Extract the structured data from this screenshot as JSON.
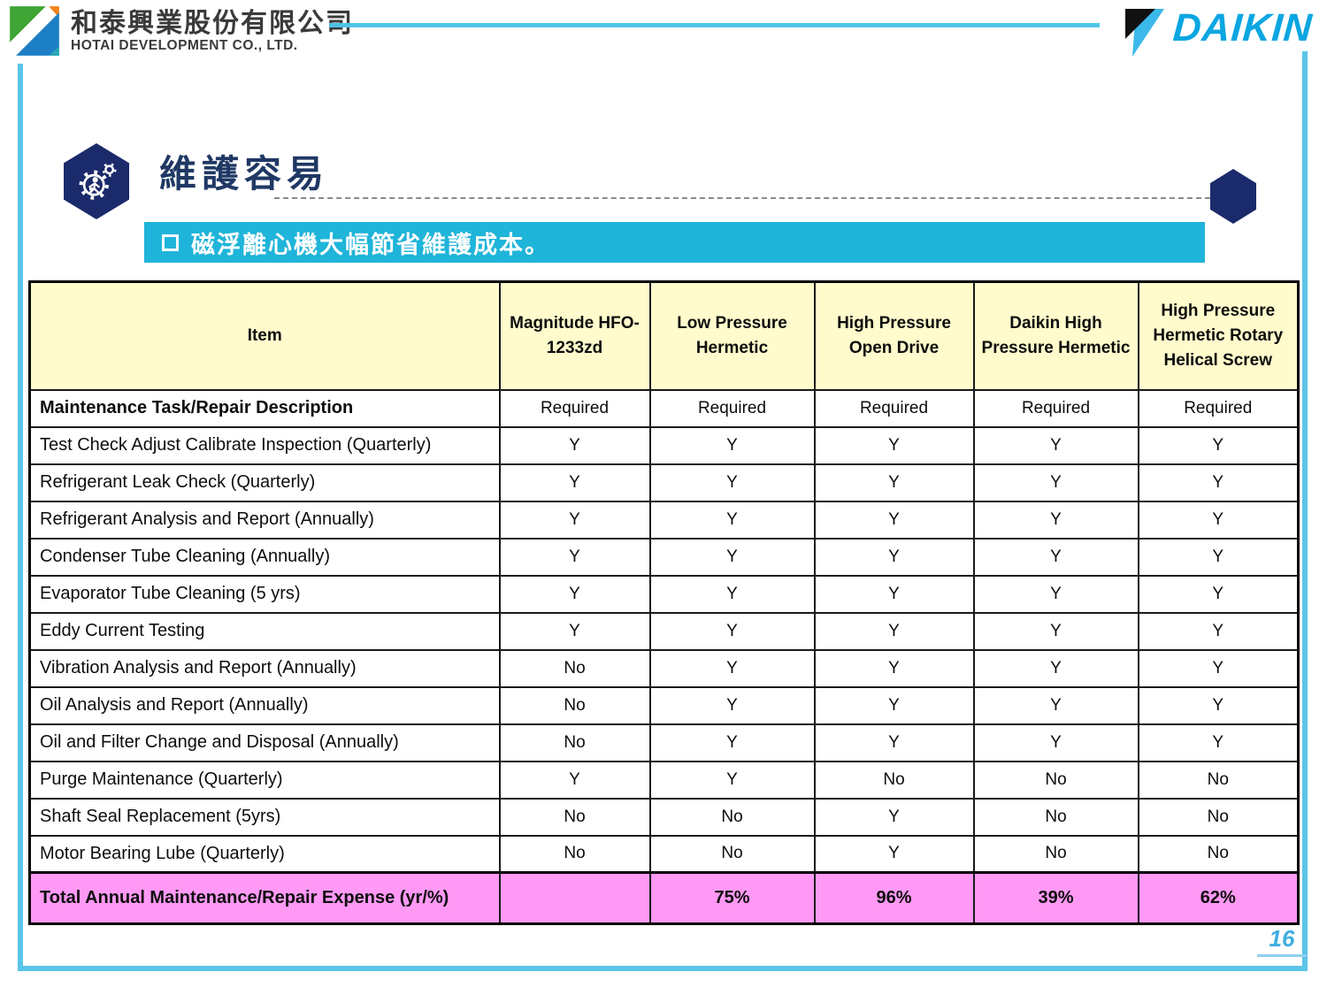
{
  "masthead": {
    "hotai_name_zh": "和泰興業股份有限公司",
    "hotai_name_en": "HOTAI DEVELOPMENT CO., LTD.",
    "daikin_wordmark": "DAIKIN"
  },
  "slide": {
    "title": "維護容易",
    "banner_text": "磁浮離心機大幅節省維護成本。",
    "page_number": "16"
  },
  "icons": {
    "title_icon": "gear-person-in-hexagon",
    "banner_bullet": "square-outline",
    "hotai_logo": "triangle-square-mark",
    "daikin_logo": "check-flag-mark"
  },
  "colors": {
    "banner_cyan": "#1FB4D9",
    "header_yellow": "#FFFBCC",
    "total_pink": "#FF99F5",
    "hex_navy": "#1B2A6B",
    "title_navy": "#1F3864",
    "daikin_blue": "#0CA6E2",
    "frame_blue": "#5BC4E8",
    "page_number_blue": "#3FAEE0"
  },
  "table": {
    "columns": [
      "Item",
      "Magnitude HFO-1233zd",
      "Low Pressure Hermetic",
      "High Pressure Open Drive",
      "Daikin High Pressure Hermetic",
      "High Pressure Hermetic Rotary Helical Screw"
    ],
    "rows": [
      {
        "label": "Maintenance Task/Repair Description",
        "bold": true,
        "values": [
          "Required",
          "Required",
          "Required",
          "Required",
          "Required"
        ]
      },
      {
        "label": "Test Check Adjust Calibrate Inspection (Quarterly)",
        "values": [
          "Y",
          "Y",
          "Y",
          "Y",
          "Y"
        ]
      },
      {
        "label": "Refrigerant Leak Check (Quarterly)",
        "values": [
          "Y",
          "Y",
          "Y",
          "Y",
          "Y"
        ]
      },
      {
        "label": "Refrigerant Analysis and Report (Annually)",
        "values": [
          "Y",
          "Y",
          "Y",
          "Y",
          "Y"
        ]
      },
      {
        "label": "Condenser Tube Cleaning (Annually)",
        "values": [
          "Y",
          "Y",
          "Y",
          "Y",
          "Y"
        ]
      },
      {
        "label": "Evaporator Tube Cleaning (5 yrs)",
        "values": [
          "Y",
          "Y",
          "Y",
          "Y",
          "Y"
        ]
      },
      {
        "label": "Eddy Current Testing",
        "values": [
          "Y",
          "Y",
          "Y",
          "Y",
          "Y"
        ]
      },
      {
        "label": "Vibration Analysis and Report (Annually)",
        "values": [
          "No",
          "Y",
          "Y",
          "Y",
          "Y"
        ]
      },
      {
        "label": "Oil Analysis and Report (Annually)",
        "values": [
          "No",
          "Y",
          "Y",
          "Y",
          "Y"
        ]
      },
      {
        "label": "Oil and Filter Change and Disposal (Annually)",
        "values": [
          "No",
          "Y",
          "Y",
          "Y",
          "Y"
        ]
      },
      {
        "label": "Purge Maintenance (Quarterly)",
        "values": [
          "Y",
          "Y",
          "No",
          "No",
          "No"
        ]
      },
      {
        "label": "Shaft Seal Replacement (5yrs)",
        "values": [
          "No",
          "No",
          "Y",
          "No",
          "No"
        ]
      },
      {
        "label": "Motor Bearing Lube (Quarterly)",
        "values": [
          "No",
          "No",
          "Y",
          "No",
          "No"
        ]
      }
    ],
    "total_row": {
      "label": "Total Annual Maintenance/Repair Expense (yr/%)",
      "values": [
        "",
        "75%",
        "96%",
        "39%",
        "62%"
      ]
    }
  }
}
